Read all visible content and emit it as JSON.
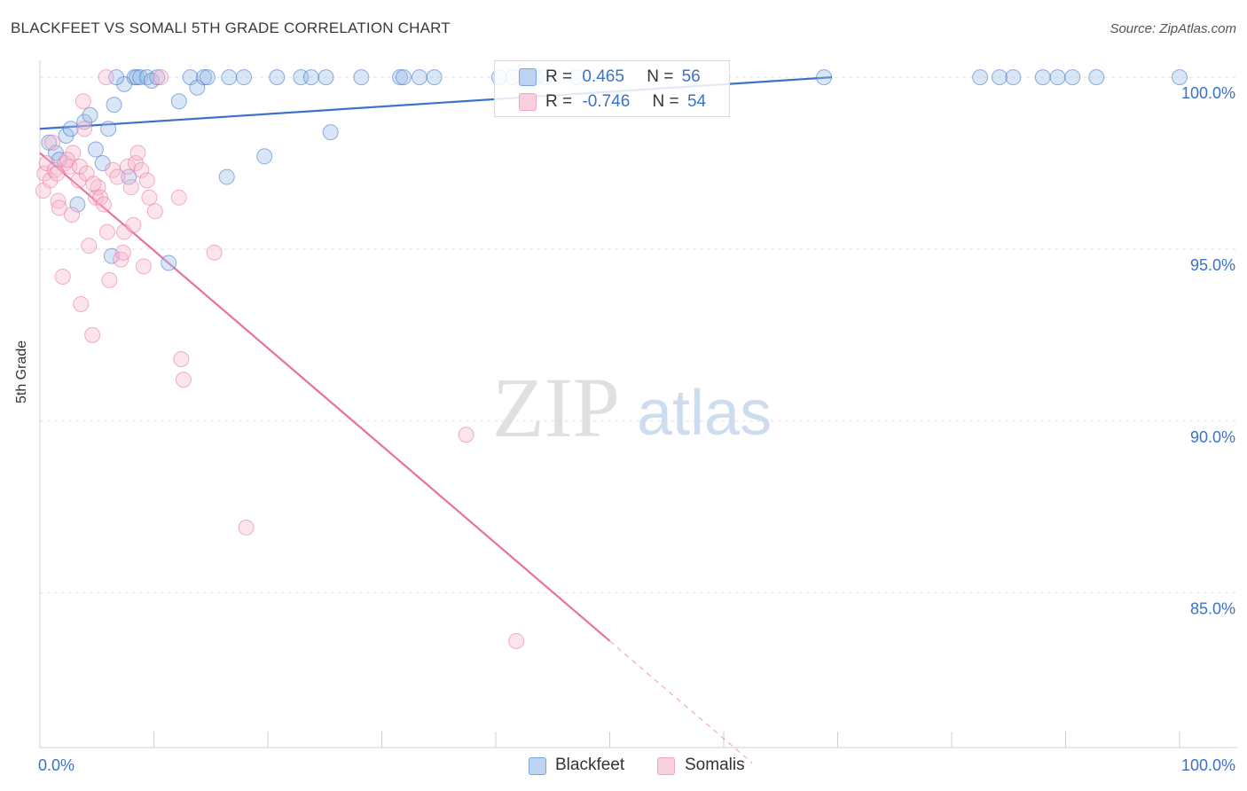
{
  "header": {
    "title": "BLACKFEET VS SOMALI 5TH GRADE CORRELATION CHART",
    "source": "Source: ZipAtlas.com"
  },
  "watermark": {
    "zip": "ZIP",
    "atlas": "atlas"
  },
  "legend_box": {
    "rows": [
      {
        "r_label": "R =",
        "r_value": "0.465",
        "n_label": "N =",
        "n_value": "56",
        "color": "#7aa7e0"
      },
      {
        "r_label": "R =",
        "r_value": "-0.746",
        "n_label": "N =",
        "n_value": "54",
        "color": "#f3a5bf"
      }
    ]
  },
  "bottom_legend": [
    {
      "label": "Blackfeet",
      "color": "#7aa7e0"
    },
    {
      "label": "Somalis",
      "color": "#f3a5bf"
    }
  ],
  "chart_data": {
    "type": "scatter",
    "title": "BLACKFEET VS SOMALI 5TH GRADE CORRELATION CHART",
    "xlabel": "",
    "ylabel": "5th Grade",
    "xlim": [
      0,
      100
    ],
    "ylim": [
      80.5,
      100.7
    ],
    "x_tick_labels": [
      "0.0%",
      "100.0%"
    ],
    "y_ticks": [
      100,
      95,
      90,
      85
    ],
    "y_tick_labels": [
      "100.0%",
      "95.0%",
      "90.0%",
      "85.0%"
    ],
    "series": [
      {
        "name": "Blackfeet",
        "color": "#3b72c9",
        "fill": "#9bbde8",
        "trend": {
          "x0": 0,
          "y0": 98.5,
          "x1": 69.5,
          "y1": 100.0,
          "dashed_to_x": null
        },
        "points": [
          [
            0.8,
            98.1
          ],
          [
            1.4,
            97.8
          ],
          [
            1.7,
            97.6
          ],
          [
            2.3,
            98.3
          ],
          [
            2.7,
            98.5
          ],
          [
            3.3,
            96.3
          ],
          [
            3.9,
            98.7
          ],
          [
            4.4,
            98.9
          ],
          [
            4.9,
            97.9
          ],
          [
            5.5,
            97.5
          ],
          [
            6.0,
            98.5
          ],
          [
            6.3,
            94.8
          ],
          [
            6.5,
            99.2
          ],
          [
            7.4,
            99.8
          ],
          [
            7.8,
            97.1
          ],
          [
            8.3,
            100.0
          ],
          [
            8.5,
            100.0
          ],
          [
            8.8,
            100.0
          ],
          [
            9.4,
            100.0
          ],
          [
            9.8,
            99.9
          ],
          [
            10.3,
            100.0
          ],
          [
            11.3,
            94.6
          ],
          [
            12.2,
            99.3
          ],
          [
            13.2,
            100.0
          ],
          [
            13.8,
            99.7
          ],
          [
            14.4,
            100.0
          ],
          [
            14.7,
            100.0
          ],
          [
            16.4,
            97.1
          ],
          [
            16.6,
            100.0
          ],
          [
            17.9,
            100.0
          ],
          [
            19.7,
            97.7
          ],
          [
            20.8,
            100.0
          ],
          [
            22.9,
            100.0
          ],
          [
            23.8,
            100.0
          ],
          [
            25.1,
            100.0
          ],
          [
            25.5,
            98.4
          ],
          [
            28.2,
            100.0
          ],
          [
            31.6,
            100.0
          ],
          [
            31.9,
            100.0
          ],
          [
            33.3,
            100.0
          ],
          [
            34.6,
            100.0
          ],
          [
            40.3,
            100.0
          ],
          [
            41.5,
            100.0
          ],
          [
            43.5,
            100.0
          ],
          [
            44.3,
            100.0
          ],
          [
            47.1,
            100.0
          ],
          [
            68.8,
            100.0
          ],
          [
            82.5,
            100.0
          ],
          [
            84.2,
            100.0
          ],
          [
            85.4,
            100.0
          ],
          [
            88.0,
            100.0
          ],
          [
            89.3,
            100.0
          ],
          [
            90.6,
            100.0
          ],
          [
            92.7,
            100.0
          ],
          [
            100.0,
            100.0
          ],
          [
            6.7,
            100.0
          ]
        ]
      },
      {
        "name": "Somalis",
        "color": "#e8729c",
        "fill": "#f7b8cc",
        "trend": {
          "x0": 0,
          "y0": 97.8,
          "x1": 50.0,
          "y1": 83.6,
          "dashed_to_x": 62.5
        },
        "points": [
          [
            0.3,
            96.7
          ],
          [
            0.4,
            97.2
          ],
          [
            0.6,
            97.5
          ],
          [
            0.9,
            97.0
          ],
          [
            1.1,
            98.1
          ],
          [
            1.3,
            97.3
          ],
          [
            1.6,
            96.4
          ],
          [
            1.7,
            96.2
          ],
          [
            2.0,
            94.2
          ],
          [
            2.2,
            97.5
          ],
          [
            2.6,
            97.4
          ],
          [
            2.8,
            96.0
          ],
          [
            2.9,
            97.8
          ],
          [
            3.4,
            97.0
          ],
          [
            3.5,
            97.4
          ],
          [
            3.6,
            93.4
          ],
          [
            3.8,
            99.3
          ],
          [
            3.9,
            98.5
          ],
          [
            4.1,
            97.2
          ],
          [
            4.3,
            95.1
          ],
          [
            4.6,
            92.5
          ],
          [
            4.9,
            96.5
          ],
          [
            5.1,
            96.8
          ],
          [
            5.3,
            96.5
          ],
          [
            5.6,
            96.3
          ],
          [
            5.9,
            95.5
          ],
          [
            6.1,
            94.1
          ],
          [
            6.4,
            97.3
          ],
          [
            7.1,
            94.7
          ],
          [
            7.3,
            94.9
          ],
          [
            7.4,
            95.5
          ],
          [
            7.7,
            97.4
          ],
          [
            8.0,
            96.8
          ],
          [
            8.2,
            95.7
          ],
          [
            8.4,
            97.5
          ],
          [
            8.6,
            97.8
          ],
          [
            8.9,
            97.3
          ],
          [
            9.1,
            94.5
          ],
          [
            9.4,
            97.0
          ],
          [
            9.6,
            96.5
          ],
          [
            10.1,
            96.1
          ],
          [
            5.8,
            100.0
          ],
          [
            10.6,
            100.0
          ],
          [
            12.2,
            96.5
          ],
          [
            12.4,
            91.8
          ],
          [
            12.6,
            91.2
          ],
          [
            15.3,
            94.9
          ],
          [
            18.1,
            86.9
          ],
          [
            37.4,
            89.6
          ],
          [
            41.8,
            83.6
          ],
          [
            1.5,
            97.2
          ],
          [
            2.4,
            97.6
          ],
          [
            4.7,
            96.9
          ],
          [
            6.8,
            97.1
          ]
        ]
      }
    ]
  }
}
